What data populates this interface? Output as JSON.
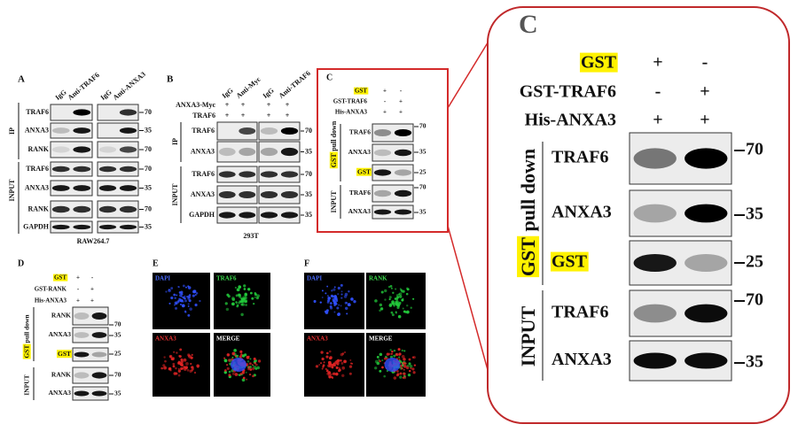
{
  "panel_a": {
    "letter": "A",
    "columns": [
      "IgG",
      "Anti-TRAF6",
      "IgG",
      "Anti-ANXA3"
    ],
    "ip_label": "IP",
    "input_label": "INPUT",
    "rows": [
      {
        "name": "TRAF6",
        "marker": 70
      },
      {
        "name": "ANXA3",
        "marker": 35
      },
      {
        "name": "RANK",
        "marker": 70
      },
      {
        "name": "TRAF6",
        "marker": 70
      },
      {
        "name": "ANXA3",
        "marker": 35
      },
      {
        "name": "RANK",
        "marker": 70
      },
      {
        "name": "GAPDH",
        "marker": 35
      }
    ],
    "cell_line": "RAW264.7"
  },
  "panel_b": {
    "letter": "B",
    "columns": [
      "IgG",
      "Anti-Myc",
      "IgG",
      "Anti-TRAF6"
    ],
    "conditions": [
      {
        "name": "ANXA3-Myc",
        "signs": [
          "+",
          "+",
          "+",
          "+"
        ]
      },
      {
        "name": "TRAF6",
        "signs": [
          "+",
          "+",
          "+",
          "+"
        ]
      }
    ],
    "ip_label": "IP",
    "input_label": "INPUT",
    "rows": [
      {
        "name": "TRAF6",
        "marker": 70
      },
      {
        "name": "ANXA3",
        "marker": 35
      },
      {
        "name": "TRAF6",
        "marker": 70
      },
      {
        "name": "ANXA3",
        "marker": 35
      },
      {
        "name": "GAPDH",
        "marker": 35
      }
    ],
    "cell_line": "293T"
  },
  "panel_c": {
    "letter": "C",
    "conditions": [
      {
        "name": "GST",
        "signs": [
          "+",
          "-"
        ]
      },
      {
        "name": "GST-TRAF6",
        "signs": [
          "-",
          "+"
        ]
      },
      {
        "name": "His-ANXA3",
        "signs": [
          "+",
          "+"
        ]
      }
    ],
    "pulldown_tag": "GST",
    "pulldown_label": "pull down",
    "input_label": "INPUT",
    "rows": [
      {
        "name": "TRAF6",
        "marker": 70
      },
      {
        "name": "ANXA3",
        "marker": 35
      },
      {
        "name": "GST",
        "marker": 25
      },
      {
        "name": "TRAF6",
        "marker": 70
      },
      {
        "name": "ANXA3",
        "marker": 35
      }
    ]
  },
  "panel_d": {
    "letter": "D",
    "conditions": [
      {
        "name": "GST",
        "signs": [
          "+",
          "-"
        ]
      },
      {
        "name": "GST-RANK",
        "signs": [
          "-",
          "+"
        ]
      },
      {
        "name": "His-ANXA3",
        "signs": [
          "+",
          "+"
        ]
      }
    ],
    "pulldown_tag": "GST",
    "pulldown_label": "pull down",
    "input_label": "INPUT",
    "rows": [
      {
        "name": "RANK",
        "marker": 70
      },
      {
        "name": "ANXA3",
        "marker": 35
      },
      {
        "name": "GST",
        "marker": 25
      },
      {
        "name": "RANK",
        "marker": 70
      },
      {
        "name": "ANXA3",
        "marker": 35
      }
    ]
  },
  "panel_e": {
    "letter": "E",
    "channels": [
      "DAPI",
      "TRAF6",
      "ANXA3",
      "MERGE"
    ]
  },
  "panel_f": {
    "letter": "F",
    "channels": [
      "DAPI",
      "RANK",
      "ANXA3",
      "MERGE"
    ]
  }
}
